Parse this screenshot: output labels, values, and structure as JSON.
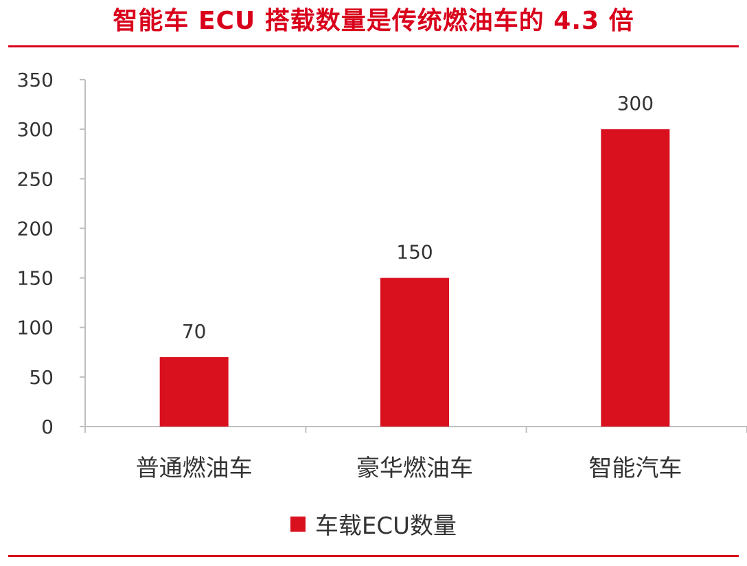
{
  "colors": {
    "accent": "#D9001B",
    "bar": "#D9101E",
    "axis": "#BFBFBF",
    "text": "#333333"
  },
  "chart_data": {
    "type": "bar",
    "title": "智能车 ECU 搭载数量是传统燃油车的 4.3 倍",
    "categories": [
      "普通燃油车",
      "豪华燃油车",
      "智能汽车"
    ],
    "series": [
      {
        "name": "车载ECU数量",
        "values": [
          70,
          150,
          300
        ],
        "data_labels": [
          "70",
          "150",
          "300"
        ]
      }
    ],
    "yticks": [
      "0",
      "50",
      "100",
      "150",
      "200",
      "250",
      "300",
      "350"
    ],
    "ylim": [
      0,
      350
    ],
    "grid": false,
    "legend_position": "bottom-center"
  }
}
